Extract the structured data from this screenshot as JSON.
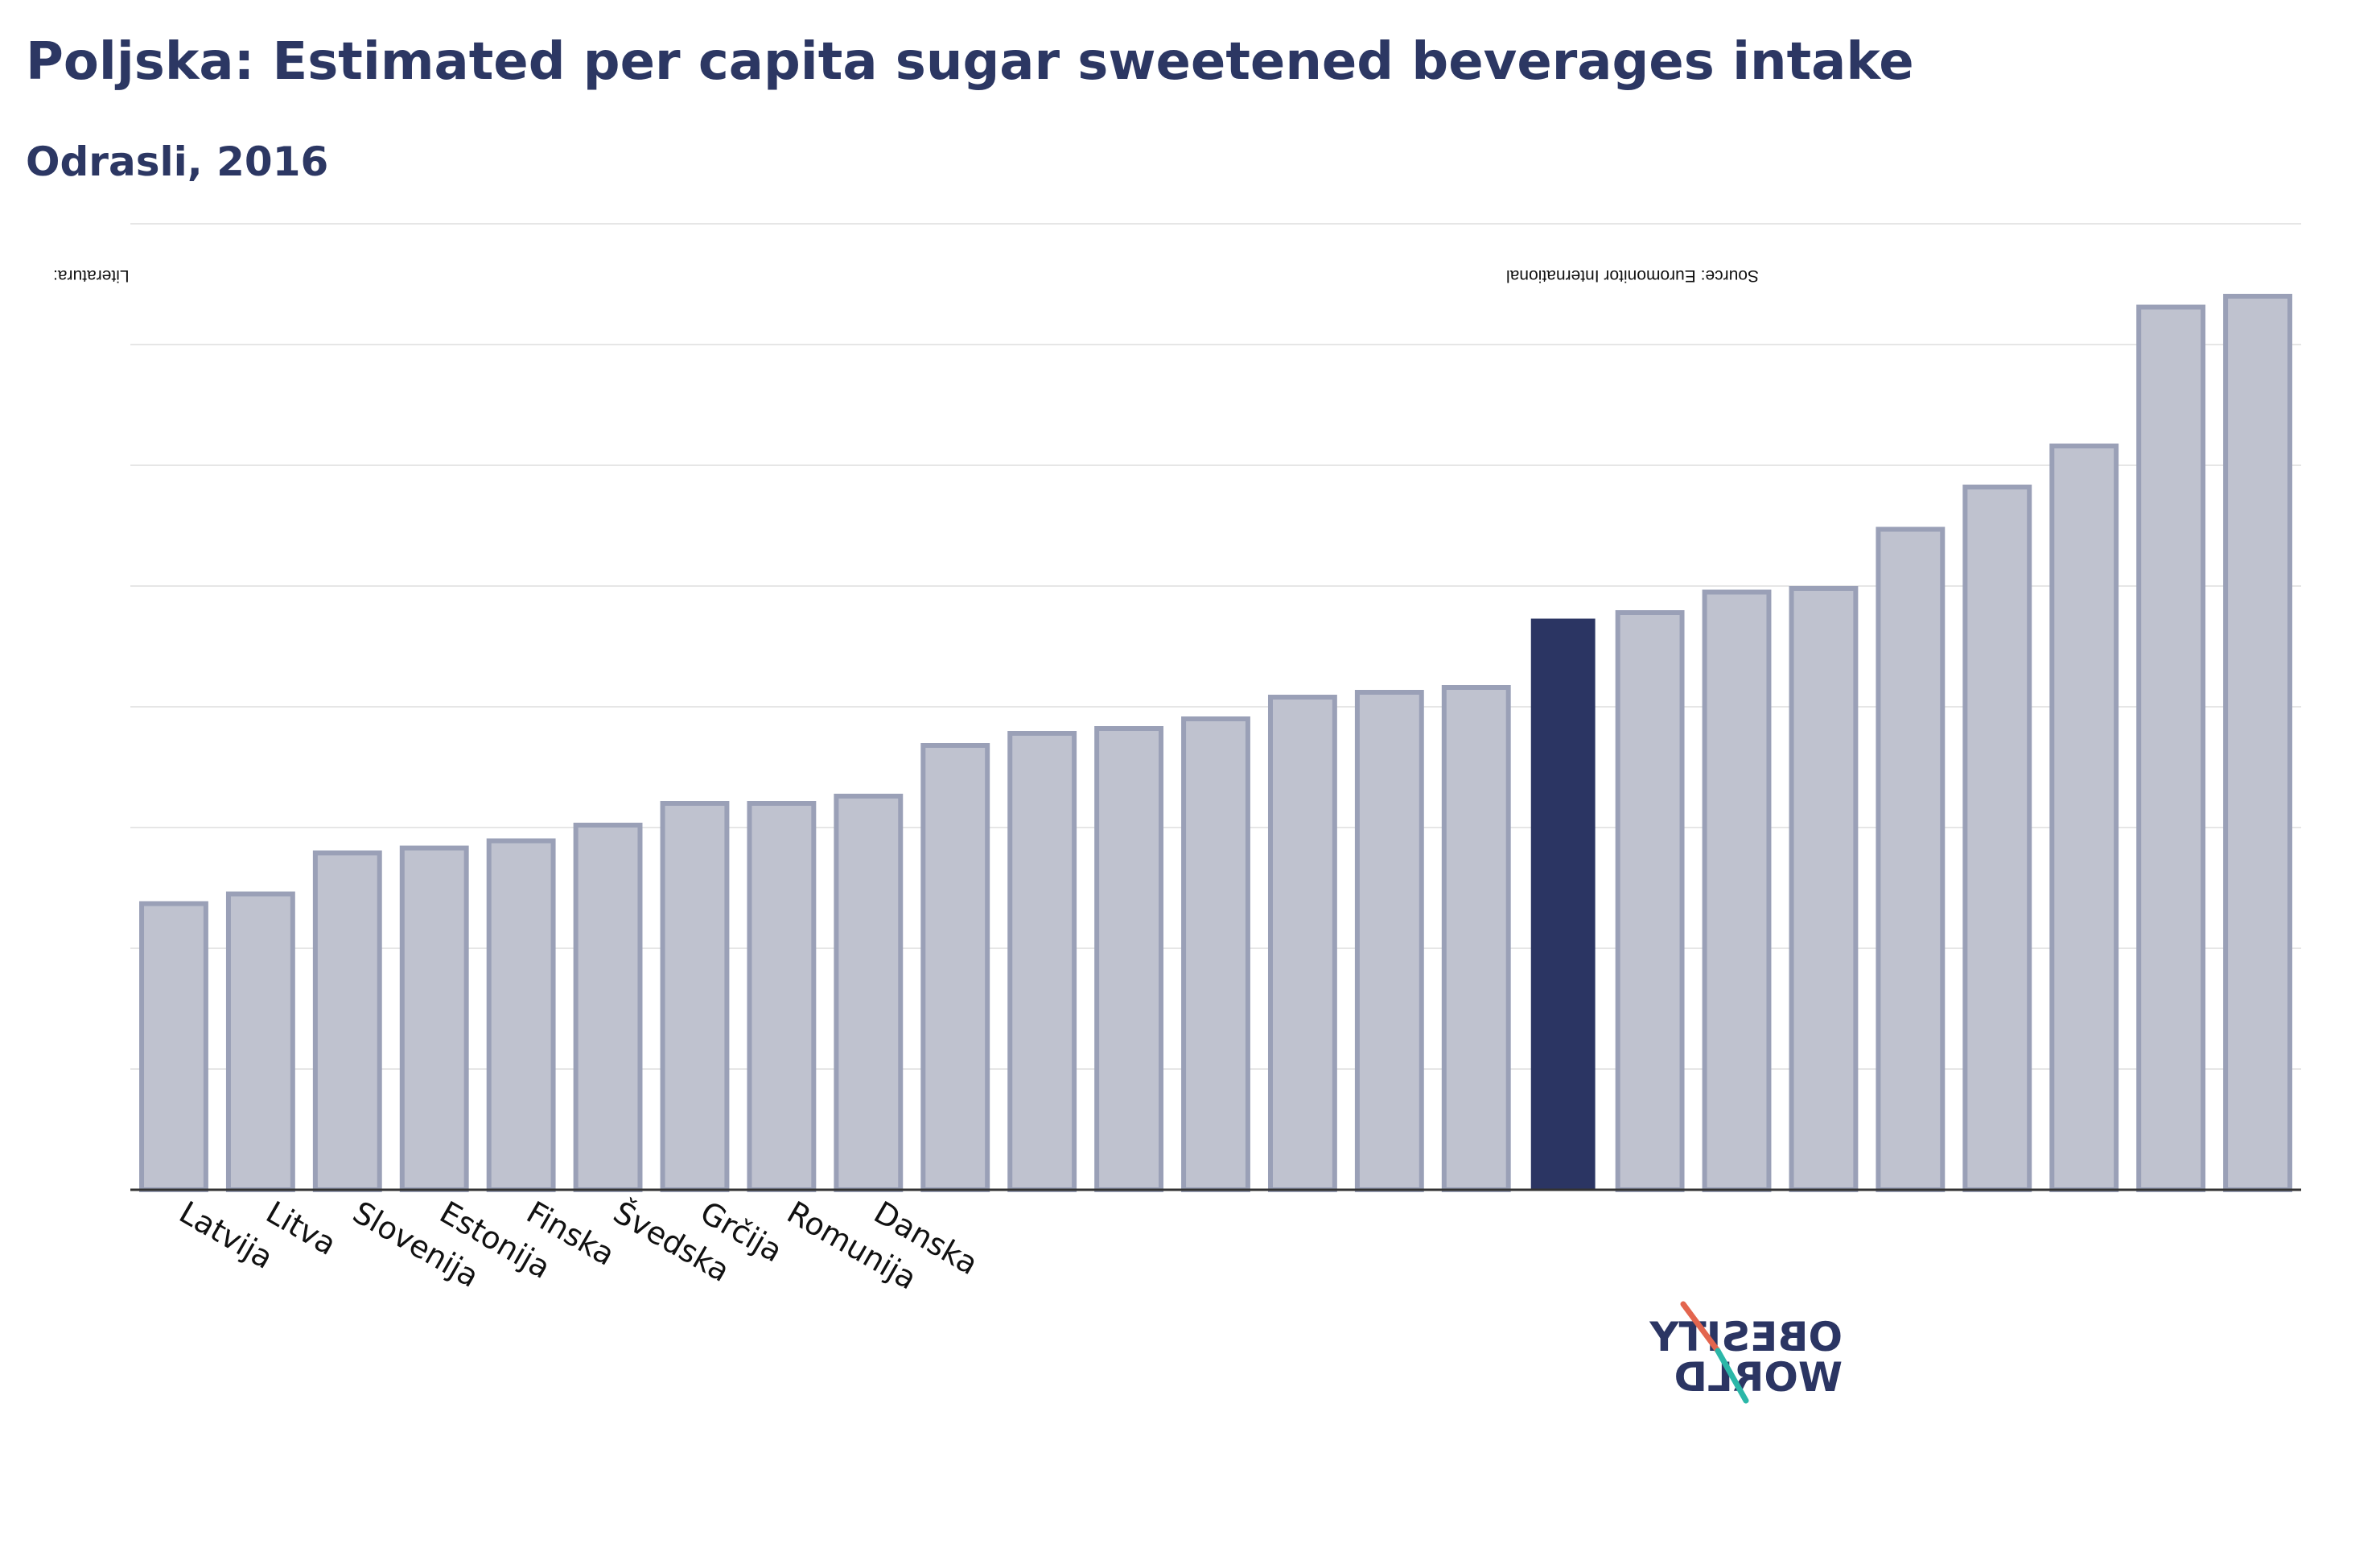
{
  "title": "Poljska: Estimated per capita sugar sweetened beverages intake",
  "subtitle": "Odrasli, 2016",
  "notes": {
    "left": "Literatura:",
    "right": "Source: Euromonitor International"
  },
  "logo": {
    "line1": "OBESITY",
    "line2": "WORLD"
  },
  "colors": {
    "bar_fill": "#bfc2cf",
    "bar_stroke": "#9aa0b7",
    "highlight": "#2b3563",
    "grid": "#e6e6e6",
    "axis": "#333333",
    "title": "#2c3763",
    "logo_red": "#e3654e",
    "logo_teal": "#2bb7a8"
  },
  "chart_data": {
    "type": "bar",
    "categories": [
      "Latvija",
      "Litva",
      "Slovenija",
      "Estonija",
      "Finska",
      "Švedska",
      "Grčija",
      "Romunija",
      "Danska",
      "",
      "",
      "",
      "",
      "",
      "",
      "",
      "",
      "",
      "",
      "",
      "",
      "",
      "",
      "",
      ""
    ],
    "values": [
      23.7,
      24.5,
      27.9,
      28.3,
      28.9,
      30.2,
      32.0,
      32.0,
      32.6,
      36.8,
      37.8,
      38.2,
      39.0,
      40.8,
      41.2,
      41.6,
      47.3,
      47.8,
      49.5,
      49.8,
      54.7,
      58.2,
      61.6,
      73.1,
      74.0
    ],
    "highlight_index": 16,
    "ylim": [
      0,
      80
    ],
    "grid": true,
    "legend": "none",
    "xlabel": "",
    "ylabel": ""
  }
}
